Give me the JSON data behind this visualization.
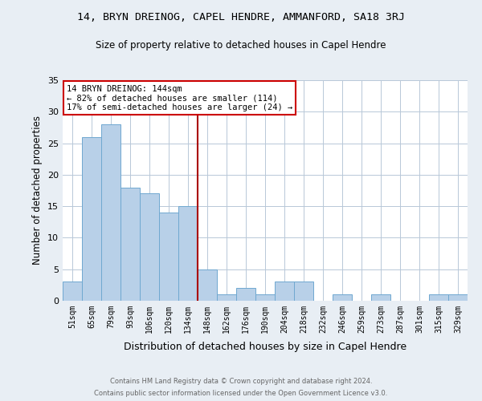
{
  "title1": "14, BRYN DREINOG, CAPEL HENDRE, AMMANFORD, SA18 3RJ",
  "title2": "Size of property relative to detached houses in Capel Hendre",
  "xlabel": "Distribution of detached houses by size in Capel Hendre",
  "ylabel": "Number of detached properties",
  "categories": [
    "51sqm",
    "65sqm",
    "79sqm",
    "93sqm",
    "106sqm",
    "120sqm",
    "134sqm",
    "148sqm",
    "162sqm",
    "176sqm",
    "190sqm",
    "204sqm",
    "218sqm",
    "232sqm",
    "246sqm",
    "259sqm",
    "273sqm",
    "287sqm",
    "301sqm",
    "315sqm",
    "329sqm"
  ],
  "values": [
    3,
    26,
    28,
    18,
    17,
    14,
    15,
    5,
    1,
    2,
    1,
    3,
    3,
    0,
    1,
    0,
    1,
    0,
    0,
    1,
    1
  ],
  "bar_color": "#b8d0e8",
  "bar_edge_color": "#6fa8d0",
  "vline_x": 6.5,
  "vline_color": "#aa0000",
  "annotation_line1": "14 BRYN DREINOG: 144sqm",
  "annotation_line2": "← 82% of detached houses are smaller (114)",
  "annotation_line3": "17% of semi-detached houses are larger (24) →",
  "annotation_box_color": "white",
  "annotation_box_edge_color": "#cc0000",
  "footer1": "Contains HM Land Registry data © Crown copyright and database right 2024.",
  "footer2": "Contains public sector information licensed under the Open Government Licence v3.0.",
  "bg_color": "#e8eef4",
  "plot_bg_color": "white",
  "grid_color": "#b8c8d8",
  "ylim": [
    0,
    35
  ],
  "yticks": [
    0,
    5,
    10,
    15,
    20,
    25,
    30,
    35
  ]
}
